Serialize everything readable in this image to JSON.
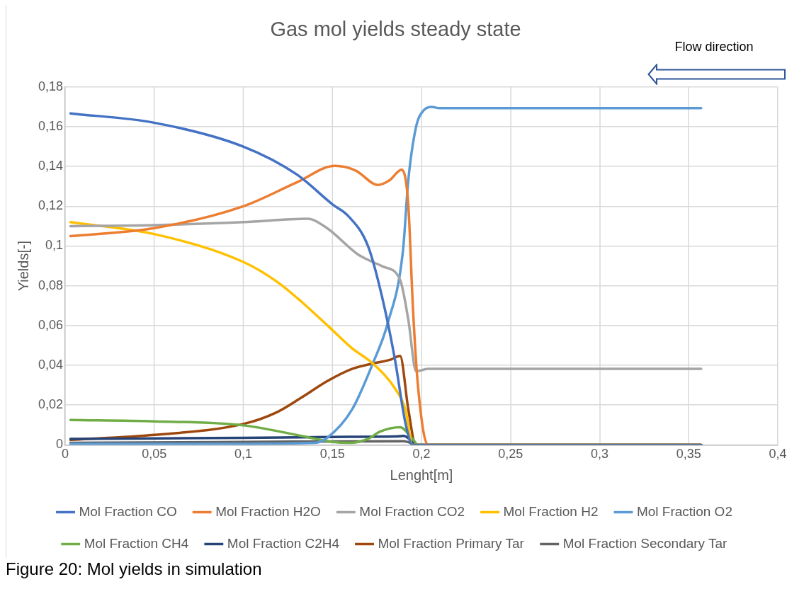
{
  "chart_data": {
    "type": "line",
    "title": "Gas mol yields steady state",
    "xlabel": "Lenght[m]",
    "ylabel": "Yields[-]",
    "xlim": [
      0,
      0.4
    ],
    "xticks": [
      0,
      {
        "value": 0.05,
        "label": "0,05"
      },
      {
        "value": 0.1,
        "label": "0,1"
      },
      {
        "value": 0.15,
        "label": "0,15"
      },
      {
        "value": 0.2,
        "label": "0,2"
      },
      {
        "value": 0.25,
        "label": "0,25"
      },
      {
        "value": 0.3,
        "label": "0,3"
      },
      {
        "value": 0.35,
        "label": "0,35"
      },
      {
        "value": 0.4,
        "label": "0,4"
      }
    ],
    "ylim": [
      0,
      0.18
    ],
    "yticks": [
      0,
      {
        "value": 0.02,
        "label": "0,02"
      },
      {
        "value": 0.04,
        "label": "0,04"
      },
      {
        "value": 0.06,
        "label": "0,06"
      },
      {
        "value": 0.08,
        "label": "0,08"
      },
      {
        "value": 0.1,
        "label": "0,1"
      },
      {
        "value": 0.12,
        "label": "0,12"
      },
      {
        "value": 0.14,
        "label": "0,14"
      },
      {
        "value": 0.16,
        "label": "0,16"
      },
      {
        "value": 0.18,
        "label": "0,18"
      }
    ],
    "grid": true,
    "legend": "bottom",
    "marker": "none",
    "line_style": "solid",
    "annotations": [
      "Flow direction",
      "Figure 20: Mol yields in simulation"
    ],
    "series": [
      {
        "name": "Mol Fraction CO",
        "color": "#4472c4",
        "x": [
          0.003,
          0.05,
          0.1,
          0.13,
          0.15,
          0.159,
          0.17,
          0.178,
          0.185,
          0.191,
          0.195,
          0.357
        ],
        "values": [
          0.1667,
          0.162,
          0.15,
          0.136,
          0.121,
          0.115,
          0.1,
          0.074,
          0.0435,
          0.011,
          0,
          0
        ]
      },
      {
        "name": "Mol Fraction H2O",
        "color": "#ed7d31",
        "x": [
          0.003,
          0.05,
          0.1,
          0.13,
          0.1515,
          0.163,
          0.1755,
          0.182,
          0.1888,
          0.1926,
          0.1952,
          0.198,
          0.2036,
          0.357
        ],
        "values": [
          0.105,
          0.109,
          0.12,
          0.132,
          0.1403,
          0.138,
          0.1307,
          0.133,
          0.1384,
          0.1207,
          0.069,
          0.03,
          0,
          0
        ]
      },
      {
        "name": "Mol Fraction CO2",
        "color": "#a5a5a5",
        "x": [
          0.003,
          0.05,
          0.1,
          0.136,
          0.147,
          0.164,
          0.178,
          0.188,
          0.1926,
          0.197,
          0.2036,
          0.357
        ],
        "values": [
          0.11,
          0.1105,
          0.112,
          0.1137,
          0.109,
          0.096,
          0.0898,
          0.083,
          0.063,
          0.037,
          0.0382,
          0.0382
        ]
      },
      {
        "name": "Mol Fraction H2",
        "color": "#ffc000",
        "x": [
          0.003,
          0.05,
          0.1,
          0.119,
          0.133,
          0.1473,
          0.161,
          0.1727,
          0.1854,
          0.191,
          0.195,
          0.357
        ],
        "values": [
          0.112,
          0.106,
          0.092,
          0.082,
          0.0717,
          0.06,
          0.0486,
          0.0409,
          0.028,
          0.0177,
          0,
          0
        ]
      },
      {
        "name": "Mol Fraction O2",
        "color": "#5b9bd5",
        "x": [
          0.003,
          0.1,
          0.14,
          0.147,
          0.161,
          0.1727,
          0.181,
          0.1896,
          0.1926,
          0.197,
          0.201,
          0.2057,
          0.21,
          0.357
        ],
        "values": [
          0.0005,
          0.0005,
          0.001,
          0.0035,
          0.0177,
          0.041,
          0.061,
          0.0975,
          0.133,
          0.16,
          0.168,
          0.17,
          0.1693,
          0.1693
        ]
      },
      {
        "name": "Mol Fraction CH4",
        "color": "#70ad47",
        "x": [
          0.003,
          0.05,
          0.1,
          0.13,
          0.15,
          0.16,
          0.17,
          0.177,
          0.188,
          0.195,
          0.198,
          0.357
        ],
        "values": [
          0.0125,
          0.0118,
          0.0098,
          0.005,
          0.0015,
          0.001,
          0.003,
          0.0068,
          0.0089,
          0.003,
          0,
          0
        ]
      },
      {
        "name": "Mol Fraction C2H4",
        "color": "#264478",
        "x": [
          0.003,
          0.1,
          0.15,
          0.185,
          0.19,
          0.198,
          0.357
        ],
        "values": [
          0.003,
          0.0035,
          0.004,
          0.0042,
          0.0045,
          0,
          0
        ]
      },
      {
        "name": "Mol Fraction Primary Tar",
        "color": "#9e480e",
        "x": [
          0.003,
          0.05,
          0.1,
          0.119,
          0.133,
          0.147,
          0.161,
          0.1727,
          0.1825,
          0.188,
          0.1926,
          0.1968,
          0.357
        ],
        "values": [
          0.0025,
          0.005,
          0.0105,
          0.0165,
          0.024,
          0.032,
          0.0382,
          0.0409,
          0.0428,
          0.0447,
          0.018,
          0,
          0
        ]
      },
      {
        "name": "Mol Fraction Secondary Tar",
        "color": "#636363",
        "x": [
          0.003,
          0.1,
          0.19,
          0.198,
          0.357
        ],
        "values": [
          0.001,
          0.0015,
          0.0018,
          0,
          0
        ]
      }
    ]
  }
}
